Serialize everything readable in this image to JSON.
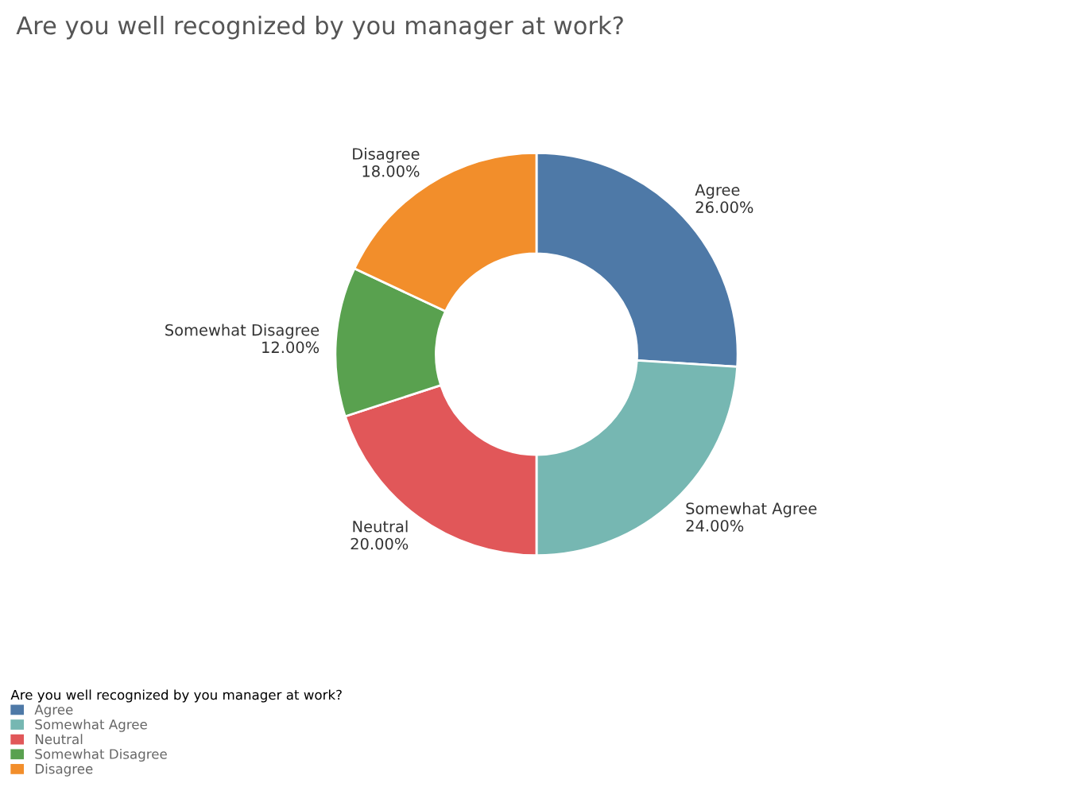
{
  "chart_data": {
    "type": "donut",
    "title": "Are you well recognized by you manager at work?",
    "legend_title": "Are you well recognized by you manager at work?",
    "legend": "bottom left",
    "categories": [
      "Agree",
      "Somewhat Agree",
      "Neutral",
      "Somewhat Disagree",
      "Disagree"
    ],
    "values": [
      26,
      24,
      20,
      12,
      18
    ],
    "value_labels": [
      "26.00%",
      "24.00%",
      "20.00%",
      "12.00%",
      "18.00%"
    ],
    "colors": [
      "#4e79a7",
      "#76b7b2",
      "#e15759",
      "#59a14f",
      "#f28e2b"
    ]
  }
}
